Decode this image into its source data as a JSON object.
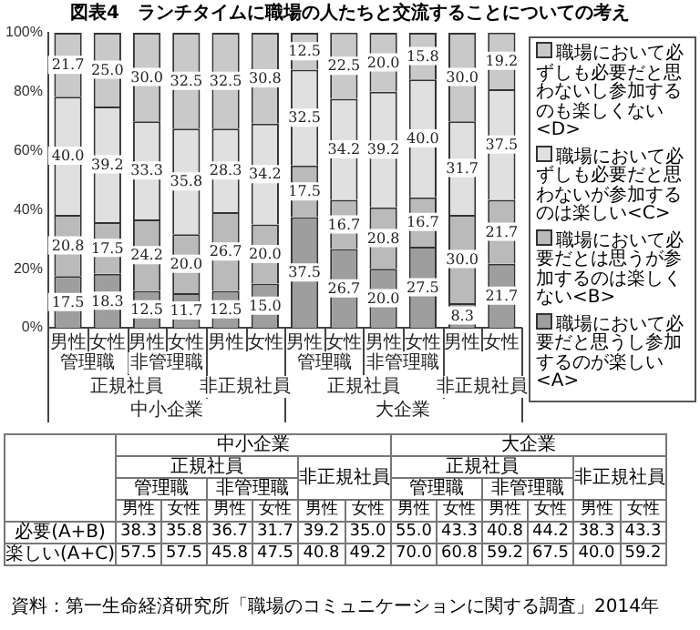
{
  "chart_data": {
    "type": "bar",
    "stacked": true,
    "title": "図表4　ランチタイムに職場の人たちと交流することについての考え",
    "categories": [
      "男性",
      "女性",
      "男性",
      "女性",
      "男性",
      "女性",
      "男性",
      "女性",
      "男性",
      "女性",
      "男性",
      "女性"
    ],
    "series": [
      {
        "name": "職場において必要だと思うし参加するのが楽しい<A>",
        "color": "#9e9e9e",
        "values": [
          17.5,
          18.3,
          12.5,
          11.7,
          12.5,
          15.0,
          37.5,
          26.7,
          20.0,
          27.5,
          8.3,
          21.7
        ],
        "value_labels": [
          "17.5",
          "18.3",
          "12.5",
          "11.7",
          "12.5",
          "15.0",
          "37.5",
          "26.7",
          "20.0",
          "27.5",
          "8.3",
          "21.7"
        ]
      },
      {
        "name": "職場において必要だとは思うが参加するのは楽しくない<B>",
        "color": "#bababa",
        "values": [
          20.8,
          17.5,
          24.2,
          20.0,
          26.7,
          20.0,
          17.5,
          16.7,
          20.8,
          16.7,
          30.0,
          21.7
        ],
        "value_labels": [
          "20.8",
          "17.5",
          "24.2",
          "20.0",
          "26.7",
          "20.0",
          "17.5",
          "16.7",
          "20.8",
          "16.7",
          "30.0",
          "21.7"
        ]
      },
      {
        "name": "職場において必ずしも必要だと思わないが参加するのは楽しい<C>",
        "color": "#e0e0e0",
        "values": [
          40.0,
          39.2,
          33.3,
          35.8,
          28.3,
          34.2,
          32.5,
          34.2,
          39.2,
          40.0,
          31.7,
          37.5
        ],
        "value_labels": [
          "40.0",
          "39.2",
          "33.3",
          "35.8",
          "28.3",
          "34.2",
          "32.5",
          "34.2",
          "39.2",
          "40.0",
          "31.7",
          "37.5"
        ]
      },
      {
        "name": "職場において必ずしも必要だと思わないし参加するのも楽しくない<D>",
        "color": "#c9c9c9",
        "values": [
          21.7,
          25.0,
          30.0,
          32.5,
          32.5,
          30.8,
          12.5,
          22.5,
          20.0,
          15.8,
          30.0,
          19.2
        ],
        "value_labels": [
          "21.7",
          "25.0",
          "30.0",
          "32.5",
          "32.5",
          "30.8",
          "12.5",
          "22.5",
          "20.0",
          "15.8",
          "30.0",
          "19.2"
        ]
      }
    ],
    "ylim": [
      0,
      100
    ],
    "yticks": [
      {
        "value": 0,
        "label": "0%"
      },
      {
        "value": 20,
        "label": "20%"
      },
      {
        "value": 40,
        "label": "40%"
      },
      {
        "value": 60,
        "label": "60%"
      },
      {
        "value": 80,
        "label": "80%"
      },
      {
        "value": 100,
        "label": "100%"
      }
    ],
    "grid": false,
    "legend": "right",
    "annotations": [
      "管理職",
      "非管理職",
      "管理職",
      "非管理職",
      "正規社員",
      "非正規社員",
      "正規社員",
      "非正規社員",
      "中小企業",
      "大企業",
      "必要(A+B)",
      "38.3",
      "35.8",
      "36.7",
      "31.7",
      "39.2",
      "35.0",
      "55.0",
      "43.3",
      "40.8",
      "44.2",
      "38.3",
      "43.3",
      "楽しい(A+C)",
      "57.5",
      "57.5",
      "45.8",
      "47.5",
      "40.8",
      "49.2",
      "70.0",
      "60.8",
      "59.2",
      "67.5",
      "40.0",
      "59.2",
      "資料：第一生命経済研究所「職場のコミュニケーションに関する調査」2014年"
    ]
  }
}
